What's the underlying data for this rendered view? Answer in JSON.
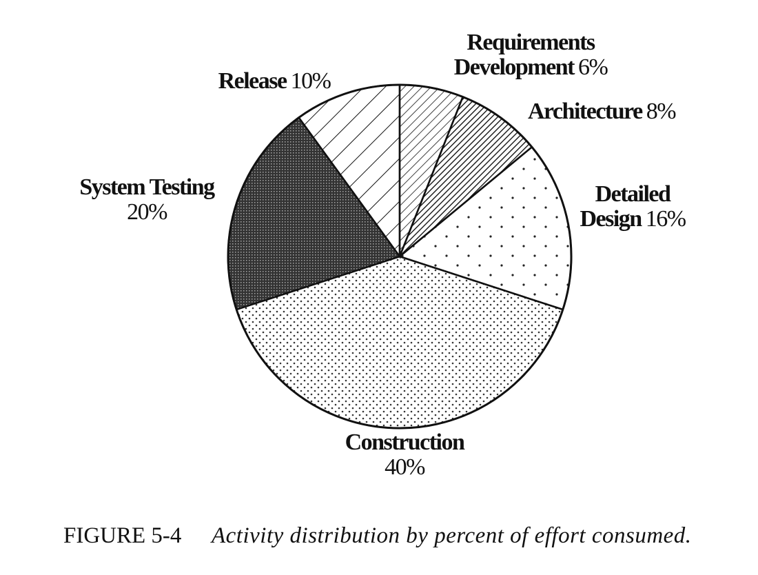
{
  "chart_data": {
    "type": "pie",
    "start": "top",
    "direction": "clockwise",
    "slices": [
      {
        "name_lines": [
          "Requirements",
          "Development"
        ],
        "value": 6,
        "label": "6%",
        "pattern": "thin-diagonal-hatch"
      },
      {
        "name_lines": [
          "Architecture"
        ],
        "value": 8,
        "label": "8%",
        "pattern": "dense-diagonal-hatch"
      },
      {
        "name_lines": [
          "Detailed",
          "Design"
        ],
        "value": 16,
        "label": "16%",
        "pattern": "sparse-dots"
      },
      {
        "name_lines": [
          "Construction"
        ],
        "value": 40,
        "label": "40%",
        "pattern": "dense-dots"
      },
      {
        "name_lines": [
          "System Testing"
        ],
        "value": 20,
        "label": "20%",
        "pattern": "dark-crosshatch"
      },
      {
        "name_lines": [
          "Release"
        ],
        "value": 10,
        "label": "10%",
        "pattern": "wide-diagonal-lines"
      }
    ]
  },
  "caption": {
    "figure": "FIGURE 5-4",
    "text": "Activity distribution by percent of effort consumed."
  }
}
